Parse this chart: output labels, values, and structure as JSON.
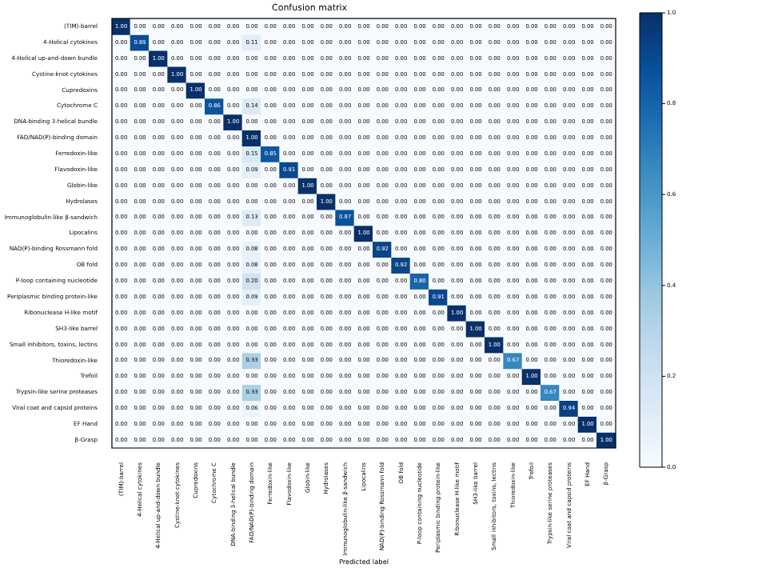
{
  "chart_data": {
    "type": "heatmap",
    "title": "Confusion matrix",
    "xlabel": "Predicted label",
    "categories": [
      "(TIM)-barrel",
      "4-Helical cytokines",
      "4-Helical up-and-down bundle",
      "Cystine-knot cytokines",
      "Cupredoxins",
      "Cytochrome C",
      "DNA-binding 3-helical bundle",
      "FAD/NAD(P)-binding domain",
      "Ferredoxin-like",
      "Flavodoxin-like",
      "Globin-like",
      "Hydrolases",
      "Immunoglobulin-like β-sandwich",
      "Lipocalins",
      "NAD(P)-binding Rossmann fold",
      "OB fold",
      "P-loop containing nucleotide",
      "Periplasmic binding protein-like",
      "Ribonuclease H-like motif",
      "SH3-like barrel",
      "Small inhibitors, toxins, lectins",
      "Thioredoxin-like",
      "Trefoil",
      "Trypsin-like serine proteases",
      "Viral coat and capsid proteins",
      "EF Hand",
      "β-Grasp"
    ],
    "y_categories": [
      "(TIM)-barrel",
      "4-Helical cytokines",
      "4-Helical up-and-down bundle",
      "Cystine-knot cytokines",
      "Cupredoxins",
      "Cytochrome C",
      "DNA-binding 3-helical bundle",
      "FAD/NAD(P)-binding domain",
      "Ferredoxin-like",
      "Flavodoxin-like",
      "Globin-like",
      "Hydrolases",
      "Immunoglobulin-like β-sandwich",
      "Lipocalins",
      "NAD(P)-binding Rossmann fold",
      "OB fold",
      "P-loop containing nucleotide",
      "Periplasmic binding protein-like",
      "Ribonuclease H-like motif",
      "SH3-like barrel",
      "Small inhibitors, toxins, lectins",
      "Thioredoxin-like",
      "Trefoil",
      "Trypsin-like serine proteases",
      "Viral coat and capsid proteins",
      "EF Hand",
      "β-Grasp"
    ],
    "cells": [
      [
        1,
        0,
        0,
        0,
        0,
        0,
        0,
        0,
        0,
        0,
        0,
        0,
        0,
        0,
        0,
        0,
        0,
        0,
        0,
        0,
        0,
        0,
        0,
        0,
        0,
        0,
        0
      ],
      [
        0,
        0.89,
        0,
        0,
        0,
        0,
        0,
        0.11,
        0,
        0,
        0,
        0,
        0,
        0,
        0,
        0,
        0,
        0,
        0,
        0,
        0,
        0,
        0,
        0,
        0,
        0,
        0
      ],
      [
        0,
        0,
        1,
        0,
        0,
        0,
        0,
        0,
        0,
        0,
        0,
        0,
        0,
        0,
        0,
        0,
        0,
        0,
        0,
        0,
        0,
        0,
        0,
        0,
        0,
        0,
        0
      ],
      [
        0,
        0,
        0,
        1,
        0,
        0,
        0,
        0,
        0,
        0,
        0,
        0,
        0,
        0,
        0,
        0,
        0,
        0,
        0,
        0,
        0,
        0,
        0,
        0,
        0,
        0,
        0
      ],
      [
        0,
        0,
        0,
        0,
        1,
        0,
        0,
        0,
        0,
        0,
        0,
        0,
        0,
        0,
        0,
        0,
        0,
        0,
        0,
        0,
        0,
        0,
        0,
        0,
        0,
        0,
        0
      ],
      [
        0,
        0,
        0,
        0,
        0,
        0.86,
        0,
        0.14,
        0,
        0,
        0,
        0,
        0,
        0,
        0,
        0,
        0,
        0,
        0,
        0,
        0,
        0,
        0,
        0,
        0,
        0,
        0
      ],
      [
        0,
        0,
        0,
        0,
        0,
        0,
        1,
        0,
        0,
        0,
        0,
        0,
        0,
        0,
        0,
        0,
        0,
        0,
        0,
        0,
        0,
        0,
        0,
        0,
        0,
        0,
        0
      ],
      [
        0,
        0,
        0,
        0,
        0,
        0,
        0,
        1,
        0,
        0,
        0,
        0,
        0,
        0,
        0,
        0,
        0,
        0,
        0,
        0,
        0,
        0,
        0,
        0,
        0,
        0,
        0
      ],
      [
        0,
        0,
        0,
        0,
        0,
        0,
        0,
        0.15,
        0.85,
        0,
        0,
        0,
        0,
        0,
        0,
        0,
        0,
        0,
        0,
        0,
        0,
        0,
        0,
        0,
        0,
        0,
        0
      ],
      [
        0,
        0,
        0,
        0,
        0,
        0,
        0,
        0.09,
        0,
        0.91,
        0,
        0,
        0,
        0,
        0,
        0,
        0,
        0,
        0,
        0,
        0,
        0,
        0,
        0,
        0,
        0,
        0
      ],
      [
        0,
        0,
        0,
        0,
        0,
        0,
        0,
        0,
        0,
        0,
        1,
        0,
        0,
        0,
        0,
        0,
        0,
        0,
        0,
        0,
        0,
        0,
        0,
        0,
        0,
        0,
        0
      ],
      [
        0,
        0,
        0,
        0,
        0,
        0,
        0,
        0,
        0,
        0,
        0,
        1,
        0,
        0,
        0,
        0,
        0,
        0,
        0,
        0,
        0,
        0,
        0,
        0,
        0,
        0,
        0
      ],
      [
        0,
        0,
        0,
        0,
        0,
        0,
        0,
        0.13,
        0,
        0,
        0,
        0,
        0.87,
        0,
        0,
        0,
        0,
        0,
        0,
        0,
        0,
        0,
        0,
        0,
        0,
        0,
        0
      ],
      [
        0,
        0,
        0,
        0,
        0,
        0,
        0,
        0,
        0,
        0,
        0,
        0,
        0,
        1,
        0,
        0,
        0,
        0,
        0,
        0,
        0,
        0,
        0,
        0,
        0,
        0,
        0
      ],
      [
        0,
        0,
        0,
        0,
        0,
        0,
        0,
        0.08,
        0,
        0,
        0,
        0,
        0,
        0,
        0.92,
        0,
        0,
        0,
        0,
        0,
        0,
        0,
        0,
        0,
        0,
        0,
        0
      ],
      [
        0,
        0,
        0,
        0,
        0,
        0,
        0,
        0.08,
        0,
        0,
        0,
        0,
        0,
        0,
        0,
        0.92,
        0,
        0,
        0,
        0,
        0,
        0,
        0,
        0,
        0,
        0,
        0
      ],
      [
        0,
        0,
        0,
        0,
        0,
        0,
        0,
        0.2,
        0,
        0,
        0,
        0,
        0,
        0,
        0,
        0,
        0.8,
        0,
        0,
        0,
        0,
        0,
        0,
        0,
        0,
        0,
        0
      ],
      [
        0,
        0,
        0,
        0,
        0,
        0,
        0,
        0.09,
        0,
        0,
        0,
        0,
        0,
        0,
        0,
        0,
        0,
        0.91,
        0,
        0,
        0,
        0,
        0,
        0,
        0,
        0,
        0
      ],
      [
        0,
        0,
        0,
        0,
        0,
        0,
        0,
        0,
        0,
        0,
        0,
        0,
        0,
        0,
        0,
        0,
        0,
        0,
        1,
        0,
        0,
        0,
        0,
        0,
        0,
        0,
        0
      ],
      [
        0,
        0,
        0,
        0,
        0,
        0,
        0,
        0,
        0,
        0,
        0,
        0,
        0,
        0,
        0,
        0,
        0,
        0,
        0,
        1,
        0,
        0,
        0,
        0,
        0,
        0,
        0
      ],
      [
        0,
        0,
        0,
        0,
        0,
        0,
        0,
        0,
        0,
        0,
        0,
        0,
        0,
        0,
        0,
        0,
        0,
        0,
        0,
        0,
        1,
        0,
        0,
        0,
        0,
        0,
        0
      ],
      [
        0,
        0,
        0,
        0,
        0,
        0,
        0,
        0.33,
        0,
        0,
        0,
        0,
        0,
        0,
        0,
        0,
        0,
        0,
        0,
        0,
        0,
        0.67,
        0,
        0,
        0,
        0,
        0
      ],
      [
        0,
        0,
        0,
        0,
        0,
        0,
        0,
        0,
        0,
        0,
        0,
        0,
        0,
        0,
        0,
        0,
        0,
        0,
        0,
        0,
        0,
        0,
        1,
        0,
        0,
        0,
        0
      ],
      [
        0,
        0,
        0,
        0,
        0,
        0,
        0,
        0.33,
        0,
        0,
        0,
        0,
        0,
        0,
        0,
        0,
        0,
        0,
        0,
        0,
        0,
        0,
        0,
        0.67,
        0,
        0,
        0
      ],
      [
        0,
        0,
        0,
        0,
        0,
        0,
        0,
        0.06,
        0,
        0,
        0,
        0,
        0,
        0,
        0,
        0,
        0,
        0,
        0,
        0,
        0,
        0,
        0,
        0,
        0.94,
        0,
        0
      ],
      [
        0,
        0,
        0,
        0,
        0,
        0,
        0,
        0,
        0,
        0,
        0,
        0,
        0,
        0,
        0,
        0,
        0,
        0,
        0,
        0,
        0,
        0,
        0,
        0,
        0,
        1,
        0
      ],
      [
        0,
        0,
        0,
        0,
        0,
        0,
        0,
        0,
        0,
        0,
        0,
        0,
        0,
        0,
        0,
        0,
        0,
        0,
        0,
        0,
        0,
        0,
        0,
        0,
        0,
        0,
        1
      ]
    ],
    "cell_labels": [
      [
        "1.00",
        "0.00",
        "0.00",
        "0.00",
        "0.00",
        "0.00",
        "0.00",
        "0.00",
        "0.00",
        "0.00",
        "0.00",
        "0.00",
        "0.00",
        "0.00",
        "0.00",
        "0.00",
        "0.00",
        "0.00",
        "0.00",
        "0.00",
        "0.00",
        "0.00",
        "0.00",
        "0.00",
        "0.00",
        "0.00",
        "0.00"
      ],
      [
        "0.00",
        "0.89",
        "0.00",
        "0.00",
        "0.00",
        "0.00",
        "0.00",
        "0.11",
        "0.00",
        "0.00",
        "0.00",
        "0.00",
        "0.00",
        "0.00",
        "0.00",
        "0.00",
        "0.00",
        "0.00",
        "0.00",
        "0.00",
        "0.00",
        "0.00",
        "0.00",
        "0.00",
        "0.00",
        "0.00",
        "0.00"
      ],
      [
        "0.00",
        "0.00",
        "1.00",
        "0.00",
        "0.00",
        "0.00",
        "0.00",
        "0.00",
        "0.00",
        "0.00",
        "0.00",
        "0.00",
        "0.00",
        "0.00",
        "0.00",
        "0.00",
        "0.00",
        "0.00",
        "0.00",
        "0.00",
        "0.00",
        "0.00",
        "0.00",
        "0.00",
        "0.00",
        "0.00",
        "0.00"
      ],
      [
        "0.00",
        "0.00",
        "0.00",
        "1.00",
        "0.00",
        "0.00",
        "0.00",
        "0.00",
        "0.00",
        "0.00",
        "0.00",
        "0.00",
        "0.00",
        "0.00",
        "0.00",
        "0.00",
        "0.00",
        "0.00",
        "0.00",
        "0.00",
        "0.00",
        "0.00",
        "0.00",
        "0.00",
        "0.00",
        "0.00",
        "0.00"
      ],
      [
        "0.00",
        "0.00",
        "0.00",
        "0.00",
        "1.00",
        "0.00",
        "0.00",
        "0.00",
        "0.00",
        "0.00",
        "0.00",
        "0.00",
        "0.00",
        "0.00",
        "0.00",
        "0.00",
        "0.00",
        "0.00",
        "0.00",
        "0.00",
        "0.00",
        "0.00",
        "0.00",
        "0.00",
        "0.00",
        "0.00",
        "0.00"
      ],
      [
        "0.00",
        "0.00",
        "0.00",
        "0.00",
        "0.00",
        "0.86",
        "0.00",
        "0.14",
        "0.00",
        "0.00",
        "0.00",
        "0.00",
        "0.00",
        "0.00",
        "0.00",
        "0.00",
        "0.00",
        "0.00",
        "0.00",
        "0.00",
        "0.00",
        "0.00",
        "0.00",
        "0.00",
        "0.00",
        "0.00",
        "0.00"
      ],
      [
        "0.00",
        "0.00",
        "0.00",
        "0.00",
        "0.00",
        "0.00",
        "1.00",
        "0.00",
        "0.00",
        "0.00",
        "0.00",
        "0.00",
        "0.00",
        "0.00",
        "0.00",
        "0.00",
        "0.00",
        "0.00",
        "0.00",
        "0.00",
        "0.00",
        "0.00",
        "0.00",
        "0.00",
        "0.00",
        "0.00",
        "0.00"
      ],
      [
        "0.00",
        "0.00",
        "0.00",
        "0.00",
        "0.00",
        "0.00",
        "0.00",
        "1.00",
        "0.00",
        "0.00",
        "0.00",
        "0.00",
        "0.00",
        "0.00",
        "0.00",
        "0.00",
        "0.00",
        "0.00",
        "0.00",
        "0.00",
        "0.00",
        "0.00",
        "0.00",
        "0.00",
        "0.00",
        "0.00",
        "0.00"
      ],
      [
        "0.00",
        "0.00",
        "0.00",
        "0.00",
        "0.00",
        "0.00",
        "0.00",
        "0.15",
        "0.85",
        "0.00",
        "0.00",
        "0.00",
        "0.00",
        "0.00",
        "0.00",
        "0.00",
        "0.00",
        "0.00",
        "0.00",
        "0.00",
        "0.00",
        "0.00",
        "0.00",
        "0.00",
        "0.00",
        "0.00",
        "0.00"
      ],
      [
        "0.00",
        "0.00",
        "0.00",
        "0.00",
        "0.00",
        "0.00",
        "0.00",
        "0.09",
        "0.00",
        "0.91",
        "0.00",
        "0.00",
        "0.00",
        "0.00",
        "0.00",
        "0.00",
        "0.00",
        "0.00",
        "0.00",
        "0.00",
        "0.00",
        "0.00",
        "0.00",
        "0.00",
        "0.00",
        "0.00",
        "0.00"
      ],
      [
        "0.00",
        "0.00",
        "0.00",
        "0.00",
        "0.00",
        "0.00",
        "0.00",
        "0.00",
        "0.00",
        "0.00",
        "1.00",
        "0.00",
        "0.00",
        "0.00",
        "0.00",
        "0.00",
        "0.00",
        "0.00",
        "0.00",
        "0.00",
        "0.00",
        "0.00",
        "0.00",
        "0.00",
        "0.00",
        "0.00",
        "0.00"
      ],
      [
        "0.00",
        "0.00",
        "0.00",
        "0.00",
        "0.00",
        "0.00",
        "0.00",
        "0.00",
        "0.00",
        "0.00",
        "0.00",
        "1.00",
        "0.00",
        "0.00",
        "0.00",
        "0.00",
        "0.00",
        "0.00",
        "0.00",
        "0.00",
        "0.00",
        "0.00",
        "0.00",
        "0.00",
        "0.00",
        "0.00",
        "0.00"
      ],
      [
        "0.00",
        "0.00",
        "0.00",
        "0.00",
        "0.00",
        "0.00",
        "0.00",
        "0.13",
        "0.00",
        "0.00",
        "0.00",
        "0.00",
        "0.87",
        "0.00",
        "0.00",
        "0.00",
        "0.00",
        "0.00",
        "0.00",
        "0.00",
        "0.00",
        "0.00",
        "0.00",
        "0.00",
        "0.00",
        "0.00",
        "0.00"
      ],
      [
        "0.00",
        "0.00",
        "0.00",
        "0.00",
        "0.00",
        "0.00",
        "0.00",
        "0.00",
        "0.00",
        "0.00",
        "0.00",
        "0.00",
        "0.00",
        "1.00",
        "0.00",
        "0.00",
        "0.00",
        "0.00",
        "0.00",
        "0.00",
        "0.00",
        "0.00",
        "0.00",
        "0.00",
        "0.00",
        "0.00",
        "0.00"
      ],
      [
        "0.00",
        "0.00",
        "0.00",
        "0.00",
        "0.00",
        "0.00",
        "0.00",
        "0.08",
        "0.00",
        "0.00",
        "0.00",
        "0.00",
        "0.00",
        "0.00",
        "0.92",
        "0.00",
        "0.00",
        "0.00",
        "0.00",
        "0.00",
        "0.00",
        "0.00",
        "0.00",
        "0.00",
        "0.00",
        "0.00",
        "0.00"
      ],
      [
        "0.00",
        "0.00",
        "0.00",
        "0.00",
        "0.00",
        "0.00",
        "0.00",
        "0.08",
        "0.00",
        "0.00",
        "0.00",
        "0.00",
        "0.00",
        "0.00",
        "0.00",
        "0.92",
        "0.00",
        "0.00",
        "0.00",
        "0.00",
        "0.00",
        "0.00",
        "0.00",
        "0.00",
        "0.00",
        "0.00",
        "0.00"
      ],
      [
        "0.00",
        "0.00",
        "0.00",
        "0.00",
        "0.00",
        "0.00",
        "0.00",
        "0.20",
        "0.00",
        "0.00",
        "0.00",
        "0.00",
        "0.00",
        "0.00",
        "0.00",
        "0.00",
        "0.80",
        "0.00",
        "0.00",
        "0.00",
        "0.00",
        "0.00",
        "0.00",
        "0.00",
        "0.00",
        "0.00",
        "0.00"
      ],
      [
        "0.00",
        "0.00",
        "0.00",
        "0.00",
        "0.00",
        "0.00",
        "0.00",
        "0.09",
        "0.00",
        "0.00",
        "0.00",
        "0.00",
        "0.00",
        "0.00",
        "0.00",
        "0.00",
        "0.00",
        "0.91",
        "0.00",
        "0.00",
        "0.00",
        "0.00",
        "0.00",
        "0.00",
        "0.00",
        "0.00",
        "0.00"
      ],
      [
        "0.00",
        "0.00",
        "0.00",
        "0.00",
        "0.00",
        "0.00",
        "0.00",
        "0.00",
        "0.00",
        "0.00",
        "0.00",
        "0.00",
        "0.00",
        "0.00",
        "0.00",
        "0.00",
        "0.00",
        "0.00",
        "1.00",
        "0.00",
        "0.00",
        "0.00",
        "0.00",
        "0.00",
        "0.00",
        "0.00",
        "0.00"
      ],
      [
        "0.00",
        "0.00",
        "0.00",
        "0.00",
        "0.00",
        "0.00",
        "0.00",
        "0.00",
        "0.00",
        "0.00",
        "0.00",
        "0.00",
        "0.00",
        "0.00",
        "0.00",
        "0.00",
        "0.00",
        "0.00",
        "0.00",
        "1.00",
        "0.00",
        "0.00",
        "0.00",
        "0.00",
        "0.00",
        "0.00",
        "0.00"
      ],
      [
        "0.00",
        "0.00",
        "0.00",
        "0.00",
        "0.00",
        "0.00",
        "0.00",
        "0.00",
        "0.00",
        "0.00",
        "0.00",
        "0.00",
        "0.00",
        "0.00",
        "0.00",
        "0.00",
        "0.00",
        "0.00",
        "0.00",
        "0.00",
        "1.00",
        "0.00",
        "0.00",
        "0.00",
        "0.00",
        "0.00",
        "0.00"
      ],
      [
        "0.00",
        "0.00",
        "0.00",
        "0.00",
        "0.00",
        "0.00",
        "0.00",
        "0.33",
        "0.00",
        "0.00",
        "0.00",
        "0.00",
        "0.00",
        "0.00",
        "0.00",
        "0.00",
        "0.00",
        "0.00",
        "0.00",
        "0.00",
        "0.00",
        "0.67",
        "0.00",
        "0.00",
        "0.00",
        "0.00",
        "0.00"
      ],
      [
        "0.00",
        "0.00",
        "0.00",
        "0.00",
        "0.00",
        "0.00",
        "0.00",
        "0.00",
        "0.00",
        "0.00",
        "0.00",
        "0.00",
        "0.00",
        "0.00",
        "0.00",
        "0.00",
        "0.00",
        "0.00",
        "0.00",
        "0.00",
        "0.00",
        "0.00",
        "1.00",
        "0.00",
        "0.00",
        "0.00",
        "0.00"
      ],
      [
        "0.00",
        "0.00",
        "0.00",
        "0.00",
        "0.00",
        "0.00",
        "0.00",
        "0.33",
        "0.00",
        "0.00",
        "0.00",
        "0.00",
        "0.00",
        "0.00",
        "0.00",
        "0.00",
        "0.00",
        "0.00",
        "0.00",
        "0.00",
        "0.00",
        "0.00",
        "0.00",
        "0.67",
        "0.00",
        "0.00",
        "0.00"
      ],
      [
        "0.00",
        "0.00",
        "0.00",
        "0.00",
        "0.00",
        "0.00",
        "0.00",
        "0.06",
        "0.00",
        "0.00",
        "0.00",
        "0.00",
        "0.00",
        "0.00",
        "0.00",
        "0.00",
        "0.00",
        "0.00",
        "0.00",
        "0.00",
        "0.00",
        "0.00",
        "0.00",
        "0.00",
        "0.94",
        "0.00",
        "0.00"
      ],
      [
        "0.00",
        "0.00",
        "0.00",
        "0.00",
        "0.00",
        "0.00",
        "0.00",
        "0.00",
        "0.00",
        "0.00",
        "0.00",
        "0.00",
        "0.00",
        "0.00",
        "0.00",
        "0.00",
        "0.00",
        "0.00",
        "0.00",
        "0.00",
        "0.00",
        "0.00",
        "0.00",
        "0.00",
        "0.00",
        "1.00",
        "0.00"
      ],
      [
        "0.00",
        "0.00",
        "0.00",
        "0.00",
        "0.00",
        "0.00",
        "0.00",
        "0.00",
        "0.00",
        "0.00",
        "0.00",
        "0.00",
        "0.00",
        "0.00",
        "0.00",
        "0.00",
        "0.00",
        "0.00",
        "0.00",
        "0.00",
        "0.00",
        "0.00",
        "0.00",
        "0.00",
        "0.00",
        "0.00",
        "1.00"
      ]
    ],
    "clim": [
      0,
      1
    ],
    "cticks": [
      {
        "value": 0,
        "label": "0.0"
      },
      {
        "value": 0.2,
        "label": "0.2"
      },
      {
        "value": 0.4,
        "label": "0.4"
      },
      {
        "value": 0.6,
        "label": "0.6"
      },
      {
        "value": 0.8,
        "label": "0.8"
      },
      {
        "value": 1,
        "label": "1.0"
      }
    ]
  }
}
